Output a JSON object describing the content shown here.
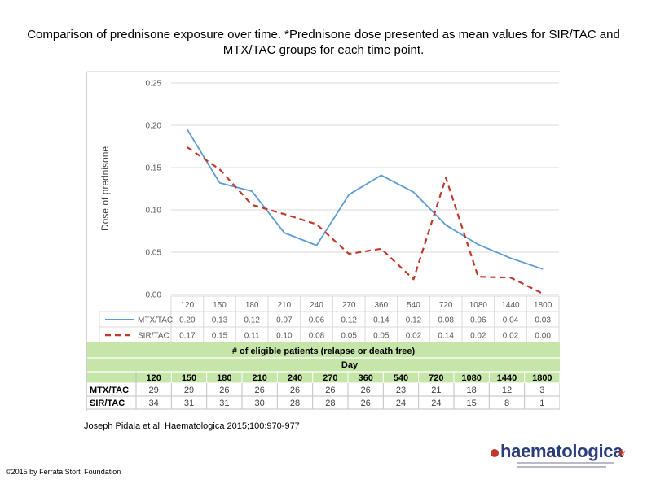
{
  "slide": {
    "title": "Comparison of prednisone exposure over time. *Prednisone dose presented as mean values for SIR/TAC and MTX/TAC groups for each time point.",
    "citation": "Joseph Pidala et al. Haematologica 2015;100:970-977",
    "copyright": "©2015 by Ferrata Storti Foundation",
    "logo_text": "haematologica"
  },
  "colors": {
    "mtx": "#5b9bd5",
    "sir": "#c0392b",
    "table_band": "#c6e5a8",
    "grid": "#d9d9d9",
    "text": "#595959"
  },
  "chart_data": {
    "type": "line",
    "ylabel": "Dose of prednisone",
    "xlabel": "",
    "categories": [
      "120",
      "150",
      "180",
      "210",
      "240",
      "270",
      "360",
      "540",
      "720",
      "1080",
      "1440",
      "1800"
    ],
    "ylim": [
      0,
      0.25
    ],
    "yticks": [
      "0.00",
      "0.05",
      "0.10",
      "0.15",
      "0.20",
      "0.25"
    ],
    "grid": true,
    "series": [
      {
        "name": "MTX/TAC",
        "style": "solid",
        "values": [
          0.195,
          0.132,
          0.122,
          0.073,
          0.058,
          0.118,
          0.141,
          0.121,
          0.082,
          0.059,
          0.043,
          0.03
        ],
        "labels": [
          "0.20",
          "0.13",
          "0.12",
          "0.07",
          "0.06",
          "0.12",
          "0.14",
          "0.12",
          "0.08",
          "0.06",
          "0.04",
          "0.03"
        ]
      },
      {
        "name": "SIR/TAC",
        "style": "dashed",
        "values": [
          0.174,
          0.148,
          0.106,
          0.095,
          0.083,
          0.048,
          0.054,
          0.018,
          0.138,
          0.021,
          0.02,
          0.001
        ],
        "labels": [
          "0.17",
          "0.15",
          "0.11",
          "0.10",
          "0.08",
          "0.05",
          "0.05",
          "0.02",
          "0.14",
          "0.02",
          "0.02",
          "0.00"
        ]
      }
    ],
    "eligible_table": {
      "title": "# of eligible patients (relapse or death free)",
      "subtitle": "Day",
      "columns": [
        "120",
        "150",
        "180",
        "210",
        "240",
        "270",
        "360",
        "540",
        "720",
        "1080",
        "1440",
        "1800"
      ],
      "rows": [
        {
          "label": "MTX/TAC",
          "values": [
            "29",
            "29",
            "26",
            "26",
            "26",
            "26",
            "26",
            "23",
            "21",
            "18",
            "12",
            "3"
          ]
        },
        {
          "label": "SIR/TAC",
          "values": [
            "34",
            "31",
            "31",
            "30",
            "28",
            "28",
            "26",
            "24",
            "24",
            "15",
            "8",
            "1"
          ]
        }
      ]
    }
  }
}
